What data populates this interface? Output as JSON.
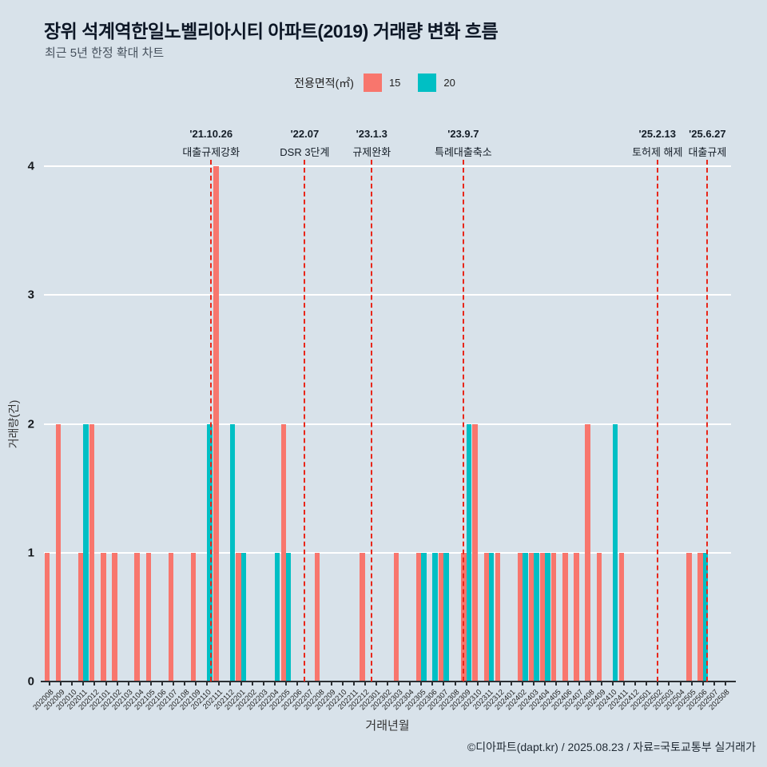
{
  "page": {
    "title": "장위 석계역한일노벨리아시티 아파트(2019) 거래량 변화 흐름",
    "subtitle": "최근 5년 한정 확대 차트",
    "footer": "©디아파트(dapt.kr) / 2025.08.23 / 자료=국토교통부 실거래가"
  },
  "legend": {
    "title": "전용면적(㎡)",
    "items": [
      {
        "label": "15",
        "color": "#F8766D"
      },
      {
        "label": "20",
        "color": "#00BFC4"
      }
    ]
  },
  "chart_data": {
    "type": "bar",
    "title": "장위 석계역한일노벨리아시티 아파트(2019) 거래량 변화 흐름",
    "xlabel": "거래년월",
    "ylabel": "거래량(건)",
    "ylim": [
      0,
      4
    ],
    "yticks": [
      0,
      1,
      2,
      3,
      4
    ],
    "grid": true,
    "legend_position": "top",
    "background": "#d8e2ea",
    "grid_color": "#ffffff",
    "event_line_color": "#e8271a",
    "categories": [
      "202008",
      "202009",
      "202010",
      "202011",
      "202012",
      "202101",
      "202102",
      "202103",
      "202104",
      "202105",
      "202106",
      "202107",
      "202108",
      "202109",
      "202110",
      "202111",
      "202112",
      "202201",
      "202202",
      "202203",
      "202204",
      "202205",
      "202206",
      "202207",
      "202208",
      "202209",
      "202210",
      "202211",
      "202212",
      "202301",
      "202302",
      "202303",
      "202304",
      "202305",
      "202306",
      "202307",
      "202308",
      "202309",
      "202310",
      "202311",
      "202312",
      "202401",
      "202402",
      "202403",
      "202404",
      "202405",
      "202406",
      "202407",
      "202408",
      "202409",
      "202410",
      "202411",
      "202412",
      "202501",
      "202502",
      "202503",
      "202504",
      "202505",
      "202506",
      "202507",
      "202508"
    ],
    "series": [
      {
        "name": "15",
        "color": "#F8766D",
        "values": [
          1,
          2,
          0,
          1,
          2,
          1,
          1,
          0,
          1,
          1,
          0,
          1,
          0,
          1,
          0,
          4,
          0,
          1,
          0,
          0,
          0,
          2,
          0,
          0,
          1,
          0,
          0,
          0,
          1,
          0,
          0,
          1,
          0,
          1,
          0,
          1,
          0,
          1,
          2,
          1,
          1,
          0,
          1,
          1,
          1,
          1,
          1,
          1,
          2,
          1,
          0,
          1,
          0,
          0,
          0,
          0,
          0,
          1,
          1,
          0,
          0
        ]
      },
      {
        "name": "20",
        "color": "#00BFC4",
        "values": [
          0,
          0,
          0,
          2,
          0,
          0,
          0,
          0,
          0,
          0,
          0,
          0,
          0,
          0,
          2,
          0,
          2,
          1,
          0,
          0,
          1,
          1,
          0,
          0,
          0,
          0,
          0,
          0,
          0,
          0,
          0,
          0,
          0,
          1,
          1,
          1,
          0,
          2,
          0,
          1,
          0,
          0,
          1,
          1,
          1,
          0,
          0,
          0,
          0,
          0,
          2,
          0,
          0,
          0,
          0,
          0,
          0,
          0,
          1,
          0,
          0
        ]
      }
    ],
    "events": [
      {
        "date": "'21.10.26",
        "label": "대출규제강화",
        "pos": 14.84
      },
      {
        "date": "'22.07",
        "label": "DSR 3단계",
        "pos": 23.15
      },
      {
        "date": "'23.1.3",
        "label": "규제완화",
        "pos": 29.1
      },
      {
        "date": "'23.9.7",
        "label": "특례대출축소",
        "pos": 37.23
      },
      {
        "date": "'25.2.13",
        "label": "토허제 해제",
        "pos": 54.46
      },
      {
        "date": "'25.6.27",
        "label": "대출규제",
        "pos": 58.9
      }
    ]
  }
}
